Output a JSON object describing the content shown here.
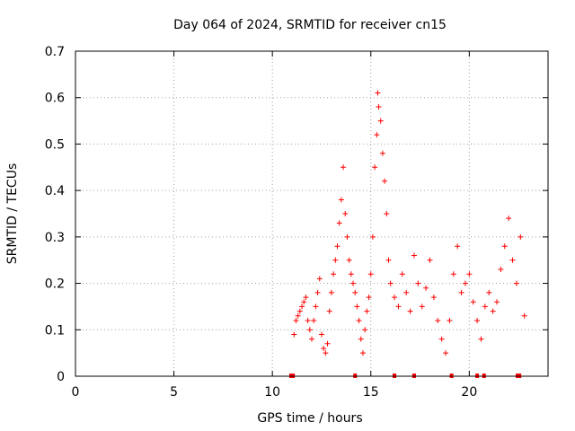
{
  "chart_data": {
    "type": "scatter",
    "title": "Day 064 of 2024, SRMTID for receiver cn15",
    "xlabel": "GPS time / hours",
    "ylabel": "SRMTID / TECUs",
    "xlim": [
      0,
      24
    ],
    "ylim": [
      0,
      0.7
    ],
    "xticks": [
      "0",
      "5",
      "10",
      "15",
      "20"
    ],
    "yticks": [
      "0",
      "0.1",
      "0.2",
      "0.3",
      "0.4",
      "0.5",
      "0.6",
      "0.7"
    ],
    "grid": true,
    "marker": "plus",
    "color": "#ff0000",
    "series": [
      {
        "name": "SRMTID",
        "points": [
          [
            11.1,
            0.09
          ],
          [
            11.2,
            0.12
          ],
          [
            11.3,
            0.13
          ],
          [
            11.4,
            0.14
          ],
          [
            11.5,
            0.15
          ],
          [
            11.6,
            0.16
          ],
          [
            11.7,
            0.17
          ],
          [
            11.8,
            0.12
          ],
          [
            11.9,
            0.1
          ],
          [
            12.0,
            0.08
          ],
          [
            12.1,
            0.12
          ],
          [
            12.2,
            0.15
          ],
          [
            12.3,
            0.18
          ],
          [
            12.4,
            0.21
          ],
          [
            12.5,
            0.09
          ],
          [
            12.6,
            0.06
          ],
          [
            12.7,
            0.05
          ],
          [
            12.8,
            0.07
          ],
          [
            12.9,
            0.14
          ],
          [
            13.0,
            0.18
          ],
          [
            13.1,
            0.22
          ],
          [
            13.2,
            0.25
          ],
          [
            13.3,
            0.28
          ],
          [
            13.4,
            0.33
          ],
          [
            13.5,
            0.38
          ],
          [
            13.6,
            0.45
          ],
          [
            13.7,
            0.35
          ],
          [
            13.8,
            0.3
          ],
          [
            13.9,
            0.25
          ],
          [
            14.0,
            0.22
          ],
          [
            14.1,
            0.2
          ],
          [
            14.2,
            0.18
          ],
          [
            14.3,
            0.15
          ],
          [
            14.4,
            0.12
          ],
          [
            14.5,
            0.08
          ],
          [
            14.6,
            0.05
          ],
          [
            14.7,
            0.1
          ],
          [
            14.8,
            0.14
          ],
          [
            14.9,
            0.17
          ],
          [
            15.0,
            0.22
          ],
          [
            15.1,
            0.3
          ],
          [
            15.2,
            0.45
          ],
          [
            15.3,
            0.52
          ],
          [
            15.35,
            0.61
          ],
          [
            15.4,
            0.58
          ],
          [
            15.5,
            0.55
          ],
          [
            15.6,
            0.48
          ],
          [
            15.7,
            0.42
          ],
          [
            15.8,
            0.35
          ],
          [
            15.9,
            0.25
          ],
          [
            16.0,
            0.2
          ],
          [
            16.2,
            0.17
          ],
          [
            16.4,
            0.15
          ],
          [
            16.6,
            0.22
          ],
          [
            16.8,
            0.18
          ],
          [
            17.0,
            0.14
          ],
          [
            17.2,
            0.26
          ],
          [
            17.4,
            0.2
          ],
          [
            17.6,
            0.15
          ],
          [
            17.8,
            0.19
          ],
          [
            18.0,
            0.25
          ],
          [
            18.2,
            0.17
          ],
          [
            18.4,
            0.12
          ],
          [
            18.6,
            0.08
          ],
          [
            18.8,
            0.05
          ],
          [
            19.0,
            0.12
          ],
          [
            19.2,
            0.22
          ],
          [
            19.4,
            0.28
          ],
          [
            19.6,
            0.18
          ],
          [
            19.8,
            0.2
          ],
          [
            20.0,
            0.22
          ],
          [
            20.2,
            0.16
          ],
          [
            20.4,
            0.12
          ],
          [
            20.6,
            0.08
          ],
          [
            20.8,
            0.15
          ],
          [
            21.0,
            0.18
          ],
          [
            21.2,
            0.14
          ],
          [
            21.4,
            0.16
          ],
          [
            21.6,
            0.23
          ],
          [
            21.8,
            0.28
          ],
          [
            22.0,
            0.34
          ],
          [
            22.2,
            0.25
          ],
          [
            22.4,
            0.2
          ],
          [
            22.6,
            0.3
          ],
          [
            22.8,
            0.13
          ]
        ]
      }
    ],
    "baseline_marks": [
      10.95,
      11.05,
      14.2,
      16.2,
      17.2,
      19.1,
      20.4,
      20.75,
      22.45,
      22.55
    ]
  }
}
